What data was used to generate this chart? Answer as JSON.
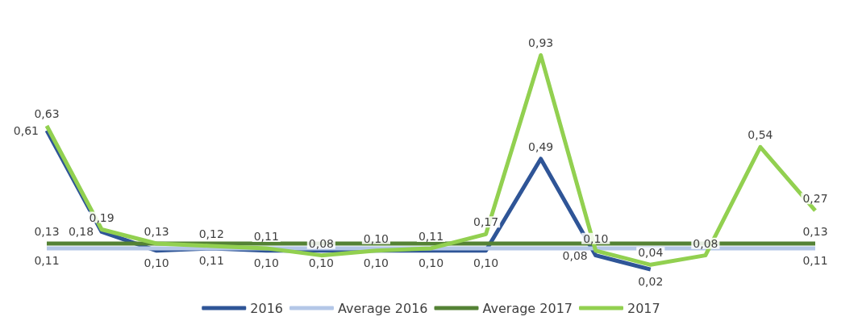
{
  "chart_data": {
    "type": "line",
    "categories": [
      null,
      null,
      null,
      null,
      null,
      null,
      null,
      null,
      null,
      null,
      null,
      null,
      null,
      null,
      null
    ],
    "series": [
      {
        "name": "2016",
        "color": "#2f5597",
        "values": [
          0.61,
          0.18,
          0.1,
          0.11,
          0.1,
          0.1,
          0.1,
          0.1,
          0.1,
          0.49,
          0.08,
          0.02,
          null,
          null,
          null
        ],
        "value_labels": [
          "0,61",
          "0,18",
          "0,10",
          "0,11",
          "0,10",
          "0,10",
          "0,10",
          "0,10",
          "0,10",
          "0,49",
          "0,08",
          "0,02",
          null,
          null,
          null
        ]
      },
      {
        "name": "Average 2016",
        "color": "#b4c7e7",
        "values": [
          0.11,
          0.11,
          0.11,
          0.11,
          0.11,
          0.11,
          0.11,
          0.11,
          0.11,
          0.11,
          0.11,
          0.11,
          0.11,
          0.11,
          0.11
        ],
        "value_labels": [
          "0,11",
          null,
          null,
          null,
          null,
          null,
          null,
          null,
          null,
          null,
          null,
          null,
          null,
          null,
          "0,11"
        ]
      },
      {
        "name": "Average 2017",
        "color": "#548235",
        "values": [
          0.13,
          0.13,
          0.13,
          0.13,
          0.13,
          0.13,
          0.13,
          0.13,
          0.13,
          0.13,
          0.13,
          0.13,
          0.13,
          0.13,
          0.13
        ],
        "value_labels": [
          "0,13",
          null,
          null,
          null,
          null,
          null,
          null,
          null,
          null,
          null,
          null,
          null,
          null,
          null,
          "0,13"
        ]
      },
      {
        "name": "2017",
        "color": "#92d050",
        "values": [
          0.63,
          0.19,
          0.13,
          0.12,
          0.11,
          0.08,
          0.1,
          0.11,
          0.17,
          0.93,
          0.1,
          0.04,
          0.08,
          0.54,
          0.27
        ],
        "value_labels": [
          "0,63",
          "0,19",
          "0,13",
          "0,12",
          "0,11",
          "0,08",
          "0,10",
          "0,11",
          "0,17",
          "0,93",
          "0,10",
          "0,04",
          "0,08",
          "0,54",
          "0,27"
        ]
      }
    ],
    "legend": "bottom",
    "marker": "none",
    "grid": false
  }
}
